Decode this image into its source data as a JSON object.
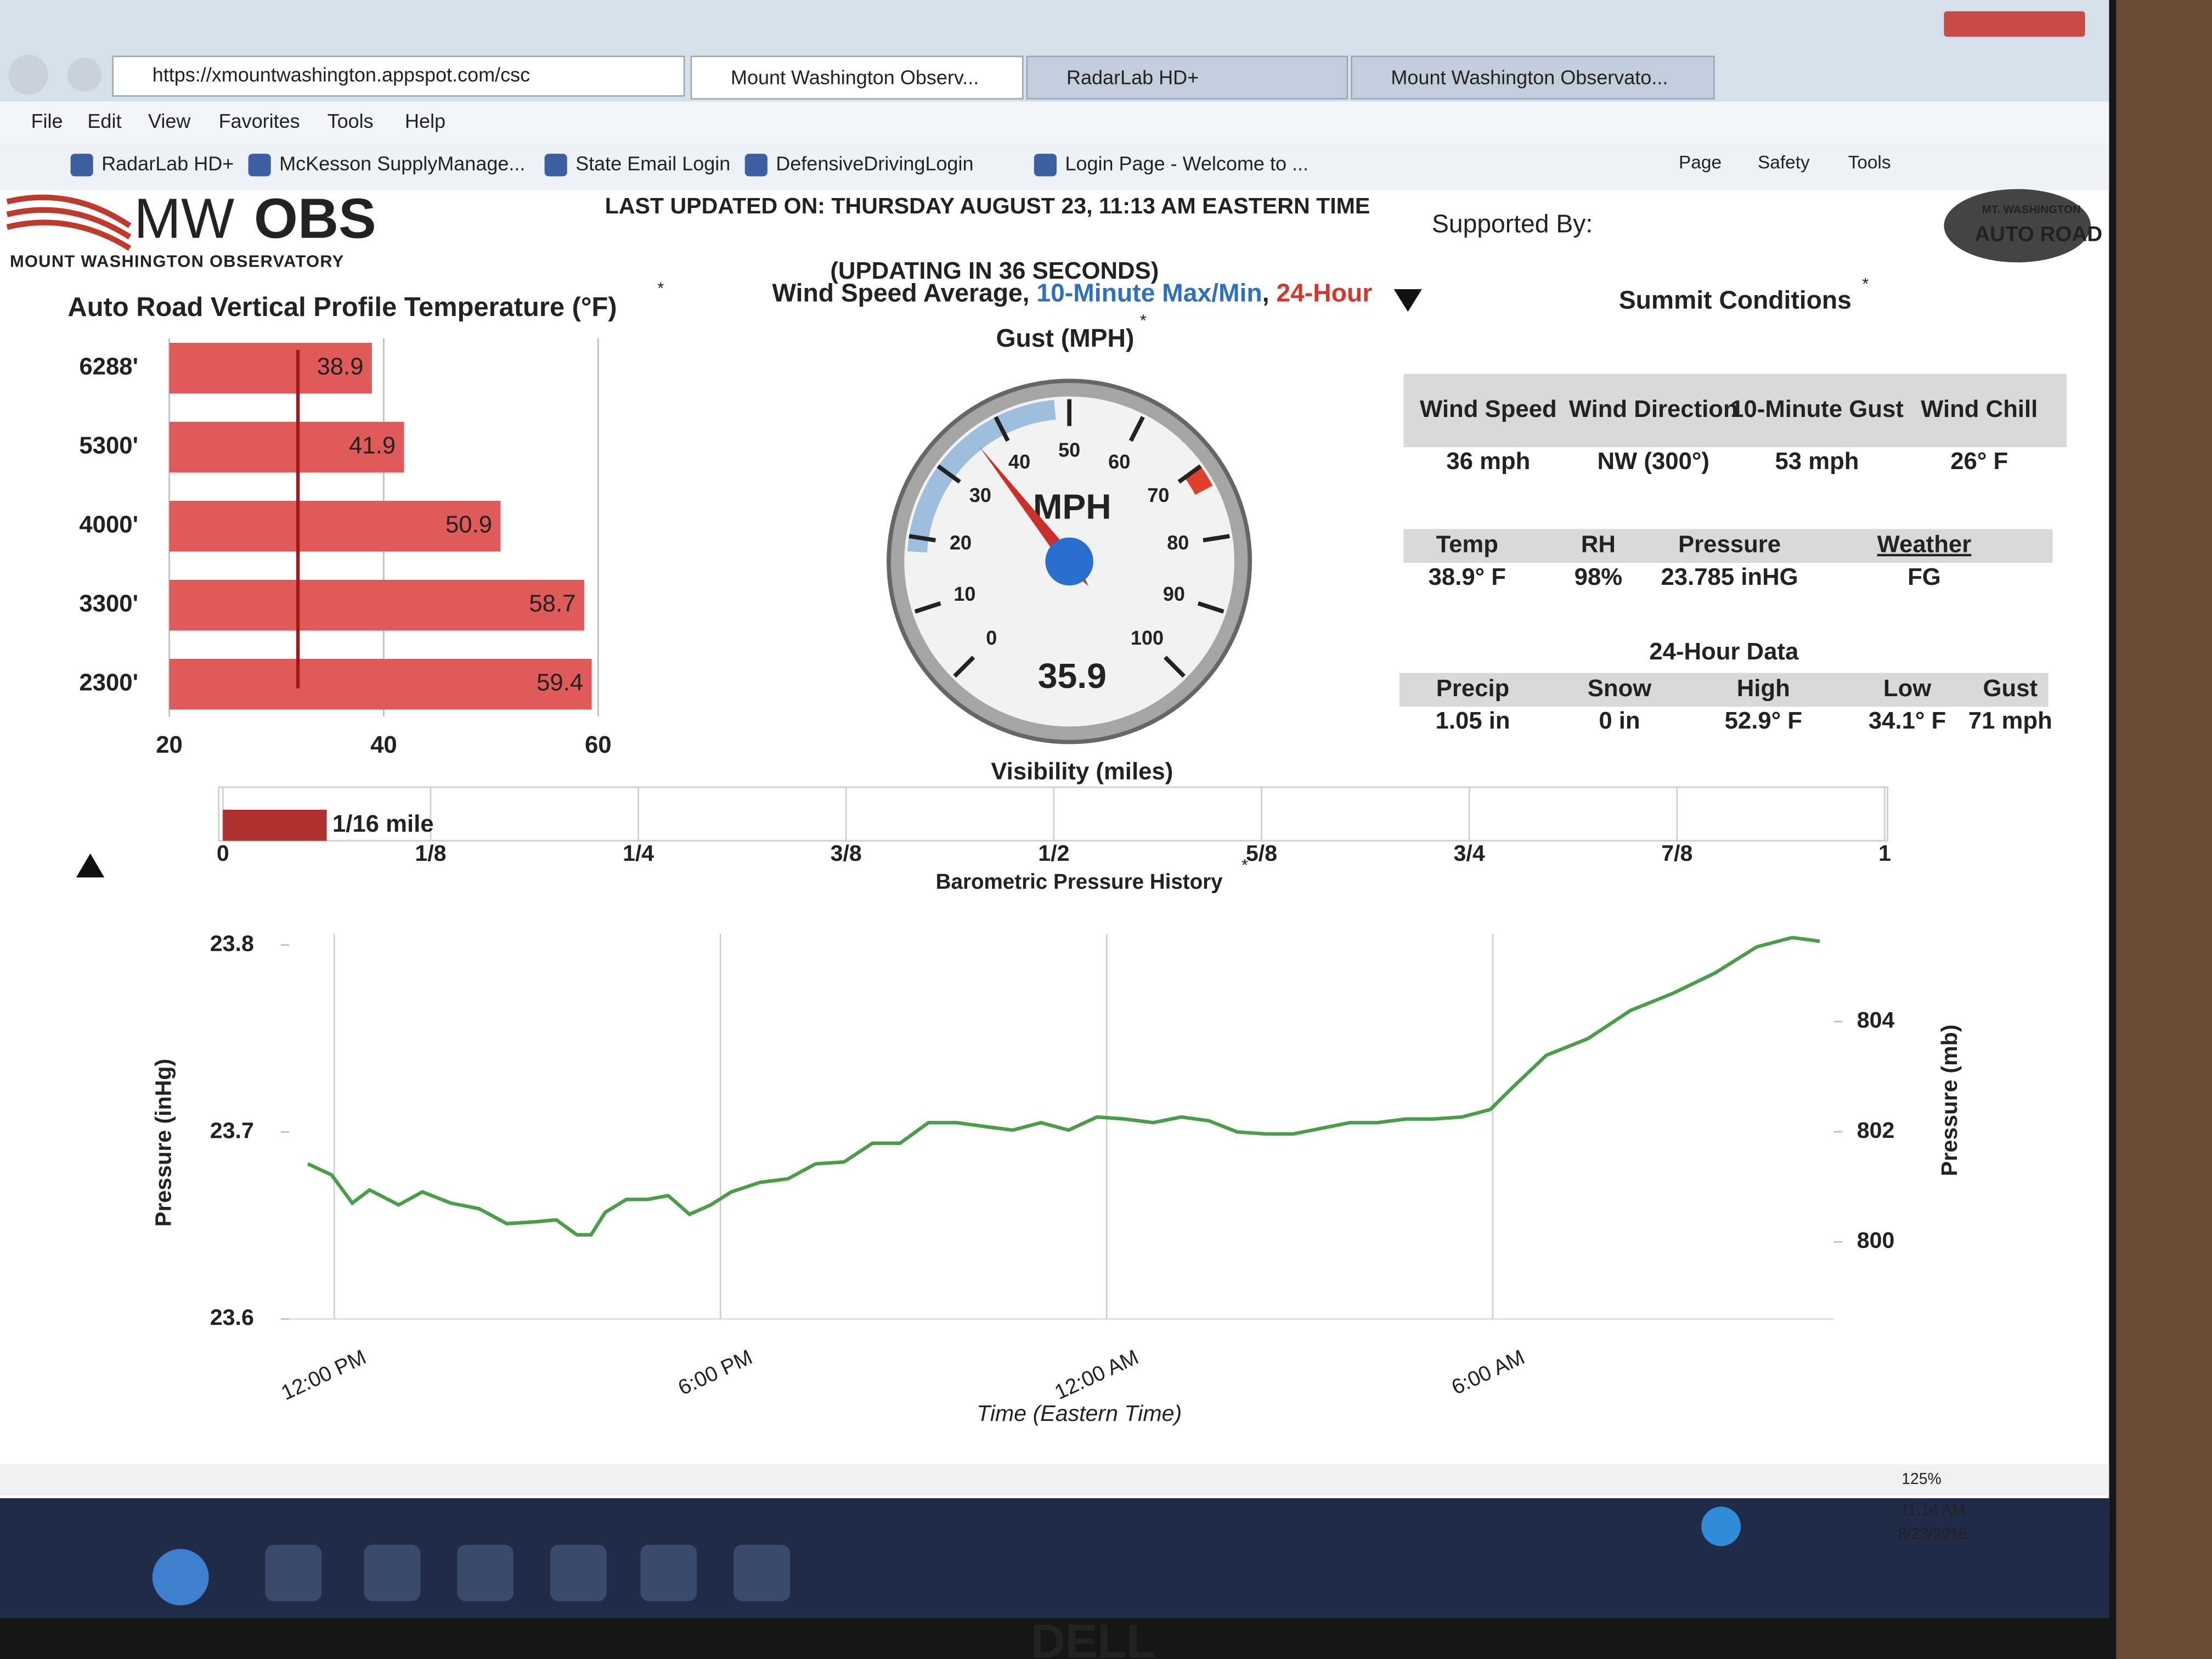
{
  "browser": {
    "url": "https://xmountwashington.appspot.com/csc",
    "tabs": [
      "Mount Washington Observ...",
      "RadarLab HD+",
      "Mount Washington Observato..."
    ],
    "menu": [
      "File",
      "Edit",
      "View",
      "Favorites",
      "Tools",
      "Help"
    ],
    "favorites": [
      "RadarLab HD+",
      "McKesson SupplyManage...",
      "State Email Login",
      "DefensiveDrivingLogin",
      "Login Page - Welcome to ..."
    ],
    "commands": [
      "Page",
      "Safety",
      "Tools"
    ],
    "zoom": "125%"
  },
  "header": {
    "logo": [
      "MW",
      "OBS"
    ],
    "logo_subtitle": "MOUNT WASHINGTON OBSERVATORY",
    "updated": "LAST UPDATED ON: THURSDAY AUGUST 23, 11:13 AM EASTERN TIME",
    "countdown": "(UPDATING IN 36 SECONDS)",
    "supported_by": "Supported By:",
    "sponsor": [
      "MT. WASHINGTON",
      "AUTO ROAD"
    ]
  },
  "footnote_mark": "*",
  "summit": {
    "title": "Summit Conditions",
    "tables": [
      {
        "headers": [
          "Wind Speed",
          "Wind Direction",
          "10-Minute Gust",
          "Wind Chill"
        ],
        "rows": [
          [
            "36 mph",
            "NW (300°)",
            "53 mph",
            "26° F"
          ]
        ]
      },
      {
        "headers": [
          "Temp",
          "RH",
          "Pressure",
          "Weather"
        ],
        "rows": [
          [
            "38.9° F",
            "98%",
            "23.785 inHG",
            "FG"
          ]
        ]
      },
      {
        "title": "24-Hour Data",
        "headers": [
          "Precip",
          "Snow",
          "High",
          "Low",
          "Gust"
        ],
        "rows": [
          [
            "1.05 in",
            "0 in",
            "52.9° F",
            "34.1° F",
            "71 mph"
          ]
        ]
      }
    ]
  },
  "chart_data": [
    {
      "type": "bar",
      "orientation": "horizontal",
      "title": "Auto Road Vertical Profile Temperature (°F)",
      "categories": [
        "6288'",
        "5300'",
        "4000'",
        "3300'",
        "2300'"
      ],
      "values": [
        38.9,
        41.9,
        50.9,
        58.7,
        59.4
      ],
      "color": "#e05a5a",
      "xlim": [
        20,
        60
      ],
      "xticks": [
        20,
        40,
        60
      ],
      "grid": true,
      "reference_line": 32,
      "reference_color": "#9e1b1b"
    },
    {
      "type": "gauge",
      "title": [
        {
          "text": "Wind Speed Average, ",
          "color": "#222222"
        },
        {
          "text": "10-Minute Max/Min",
          "color": "#2f6fc4"
        },
        {
          "text": ", ",
          "color": "#222222"
        },
        {
          "text": "24-Hour",
          "color": "#d9342b"
        },
        {
          "text": "Gust (MPH)",
          "color": "#222222"
        }
      ],
      "unit": "MPH",
      "value": 35.9,
      "ylim": [
        0,
        100
      ],
      "yticks": [
        0,
        10,
        20,
        30,
        40,
        50,
        60,
        70,
        80,
        90,
        100
      ],
      "ranges": [
        {
          "color": "#9dbedd",
          "values": [
            18,
            48
          ]
        },
        {
          "color": "#e0402a",
          "values": [
            70,
            73
          ]
        }
      ],
      "needle_color": "#c9302c",
      "hub_color": "#2a6fd0"
    },
    {
      "type": "bar",
      "orientation": "horizontal",
      "title": "Visibility (miles)",
      "values": [
        0.0625
      ],
      "value_labels": [
        "1/16 mile"
      ],
      "color": "#b03030",
      "xlim": [
        0,
        1
      ],
      "xticks": [
        0,
        {
          "value": 0.125,
          "label": "1/8"
        },
        {
          "value": 0.25,
          "label": "1/4"
        },
        {
          "value": 0.375,
          "label": "3/8"
        },
        {
          "value": 0.5,
          "label": "1/2"
        },
        {
          "value": 0.625,
          "label": "5/8"
        },
        {
          "value": 0.75,
          "label": "3/4"
        },
        {
          "value": 0.875,
          "label": "7/8"
        },
        1
      ],
      "grid": true
    },
    {
      "type": "line",
      "title": "Barometric Pressure History",
      "xlabel": "Time (Eastern Time)",
      "ylabel": "Pressure (inHg)",
      "y2label": "Pressure (mb)",
      "color": "#4a9e4a",
      "grid": true,
      "x": [
        -0.41,
        -0.04,
        0.28,
        0.55,
        1.0,
        1.37,
        1.81,
        2.25,
        2.68,
        3.12,
        3.45,
        3.77,
        3.99,
        4.21,
        4.54,
        4.87,
        5.19,
        5.52,
        5.85,
        6.17,
        6.61,
        7.05,
        7.48,
        7.92,
        8.36,
        8.79,
        9.23,
        9.67,
        10.1,
        10.54,
        10.98,
        11.41,
        11.85,
        12.28,
        12.72,
        13.16,
        13.59,
        14.03,
        14.47,
        14.9,
        15.34,
        15.78,
        16.21,
        16.65,
        17.08,
        17.52,
        17.96,
        18.28,
        18.83,
        19.48,
        20.14,
        20.79,
        21.45,
        22.1,
        22.65,
        23.08
      ],
      "values": [
        23.683,
        23.677,
        23.662,
        23.669,
        23.661,
        23.668,
        23.662,
        23.659,
        23.651,
        23.652,
        23.653,
        23.645,
        23.645,
        23.657,
        23.664,
        23.664,
        23.666,
        23.656,
        23.661,
        23.668,
        23.673,
        23.675,
        23.683,
        23.684,
        23.694,
        23.694,
        23.705,
        23.705,
        23.703,
        23.701,
        23.705,
        23.701,
        23.708,
        23.707,
        23.705,
        23.708,
        23.706,
        23.7,
        23.699,
        23.699,
        23.702,
        23.705,
        23.705,
        23.707,
        23.707,
        23.708,
        23.712,
        23.723,
        23.741,
        23.75,
        23.765,
        23.774,
        23.785,
        23.799,
        23.804,
        23.802
      ],
      "xlim": [
        -0.7,
        23.3
      ],
      "xticks": [
        {
          "value": 0,
          "label": "12:00 PM"
        },
        {
          "value": 6,
          "label": "6:00 PM"
        },
        {
          "value": 12,
          "label": "12:00 AM"
        },
        {
          "value": 18,
          "label": "6:00 AM"
        }
      ],
      "ylim": [
        23.6,
        23.815
      ],
      "yticks": [
        23.6,
        23.7,
        23.8
      ],
      "y2lim": [
        798.6,
        805.9
      ],
      "y2ticks": [
        800,
        802,
        804
      ]
    }
  ],
  "taskbar": {
    "time": "11:14 AM",
    "date": "8/23/2018"
  },
  "monitor_brand": "DELL"
}
